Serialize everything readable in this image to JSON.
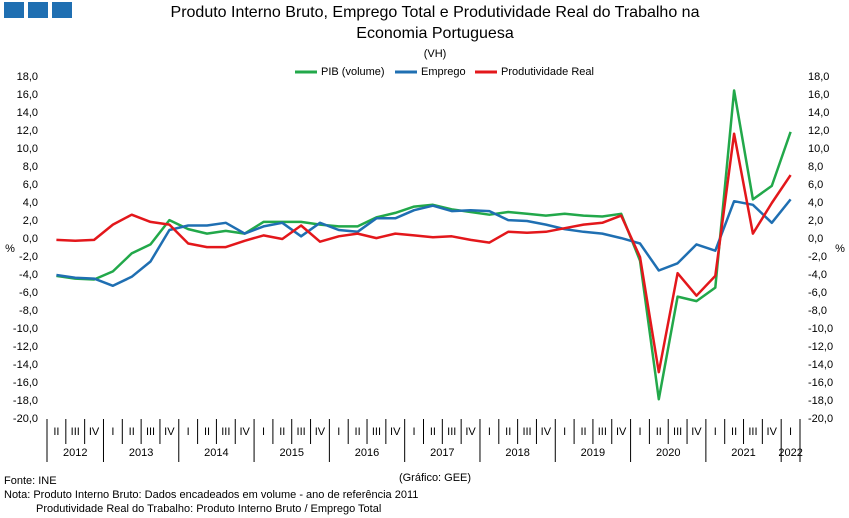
{
  "chart_data": {
    "type": "line",
    "title_line1": "Produto Interno Bruto, Emprego Total e Produtividade Real do Trabalho na",
    "title_line2": "Economia Portuguesa",
    "subtitle": "(VH)",
    "y_label": "%",
    "categories": [
      "II",
      "III",
      "IV",
      "I",
      "II",
      "III",
      "IV",
      "I",
      "II",
      "III",
      "IV",
      "I",
      "II",
      "III",
      "IV",
      "I",
      "II",
      "III",
      "IV",
      "I",
      "II",
      "III",
      "IV",
      "I",
      "II",
      "III",
      "IV",
      "I",
      "II",
      "III",
      "IV",
      "I",
      "II",
      "III",
      "IV",
      "I",
      "II",
      "III",
      "IV",
      "I"
    ],
    "year_labels": [
      "2012",
      null,
      null,
      "2013",
      null,
      null,
      null,
      "2014",
      null,
      null,
      null,
      "2015",
      null,
      null,
      null,
      "2016",
      null,
      null,
      null,
      "2017",
      null,
      null,
      null,
      "2018",
      null,
      null,
      null,
      "2019",
      null,
      null,
      null,
      "2020",
      null,
      null,
      null,
      "2021",
      null,
      null,
      null,
      "2022"
    ],
    "series": [
      {
        "name": "PIB (volume)",
        "color": "#22a84a",
        "values": [
          -4.1,
          -4.4,
          -4.5,
          -3.6,
          -1.6,
          -0.6,
          2.1,
          1.1,
          0.6,
          0.9,
          0.6,
          1.9,
          1.9,
          1.9,
          1.6,
          1.4,
          1.4,
          2.4,
          2.9,
          3.6,
          3.8,
          3.3,
          3.0,
          2.7,
          3.0,
          2.8,
          2.6,
          2.8,
          2.6,
          2.5,
          2.8,
          -2.4,
          -17.8,
          -6.4,
          -6.9,
          -5.4,
          16.5,
          4.4,
          5.9,
          11.9
        ]
      },
      {
        "name": "Emprego",
        "color": "#1f6fb2",
        "values": [
          -4.0,
          -4.3,
          -4.4,
          -5.2,
          -4.2,
          -2.5,
          1.0,
          1.5,
          1.5,
          1.8,
          0.6,
          1.4,
          1.8,
          0.3,
          1.8,
          1.0,
          0.8,
          2.3,
          2.3,
          3.2,
          3.7,
          3.1,
          3.2,
          3.1,
          2.1,
          2.0,
          1.6,
          1.1,
          0.8,
          0.6,
          0.1,
          -0.5,
          -3.5,
          -2.7,
          -0.6,
          -1.3,
          4.2,
          3.8,
          1.8,
          4.4
        ]
      },
      {
        "name": "Produtividade Real",
        "color": "#e3171b",
        "values": [
          -0.1,
          -0.2,
          -0.1,
          1.6,
          2.7,
          1.9,
          1.6,
          -0.5,
          -0.9,
          -0.9,
          -0.2,
          0.4,
          0.0,
          1.5,
          -0.3,
          0.3,
          0.6,
          0.1,
          0.6,
          0.4,
          0.2,
          0.3,
          -0.1,
          -0.4,
          0.8,
          0.7,
          0.8,
          1.2,
          1.6,
          1.8,
          2.6,
          -2.0,
          -14.8,
          -3.8,
          -6.3,
          -4.1,
          11.7,
          0.6,
          4.0,
          7.1
        ]
      }
    ],
    "ylim": [
      -20,
      18
    ],
    "yticks": [
      {
        "value": -20,
        "label": "-20,0"
      },
      {
        "value": -18,
        "label": "-18,0"
      },
      {
        "value": -16,
        "label": "-16,0"
      },
      {
        "value": -14,
        "label": "-14,0"
      },
      {
        "value": -12,
        "label": "-12,0"
      },
      {
        "value": -10,
        "label": "-10,0"
      },
      {
        "value": -8,
        "label": "-8,0"
      },
      {
        "value": -6,
        "label": "-6,0"
      },
      {
        "value": -4,
        "label": "-4,0"
      },
      {
        "value": -2,
        "label": "-2,0"
      },
      {
        "value": 0,
        "label": "0,0"
      },
      {
        "value": 2,
        "label": "2,0"
      },
      {
        "value": 4,
        "label": "4,0"
      },
      {
        "value": 6,
        "label": "6,0"
      },
      {
        "value": 8,
        "label": "8,0"
      },
      {
        "value": 10,
        "label": "10,0"
      },
      {
        "value": 12,
        "label": "12,0"
      },
      {
        "value": 14,
        "label": "14,0"
      },
      {
        "value": 16,
        "label": "16,0"
      },
      {
        "value": 18,
        "label": "18,0"
      }
    ],
    "grid": false,
    "legend": "top",
    "source": "Fonte: INE",
    "credit": "(Gráfico: GEE)",
    "note_line1": "Nota: Produto Interno Bruto: Dados encadeados em volume - ano de referência 2011",
    "note_line2": "Produtividade Real do Trabalho: Produto Interno Bruto / Emprego Total"
  }
}
